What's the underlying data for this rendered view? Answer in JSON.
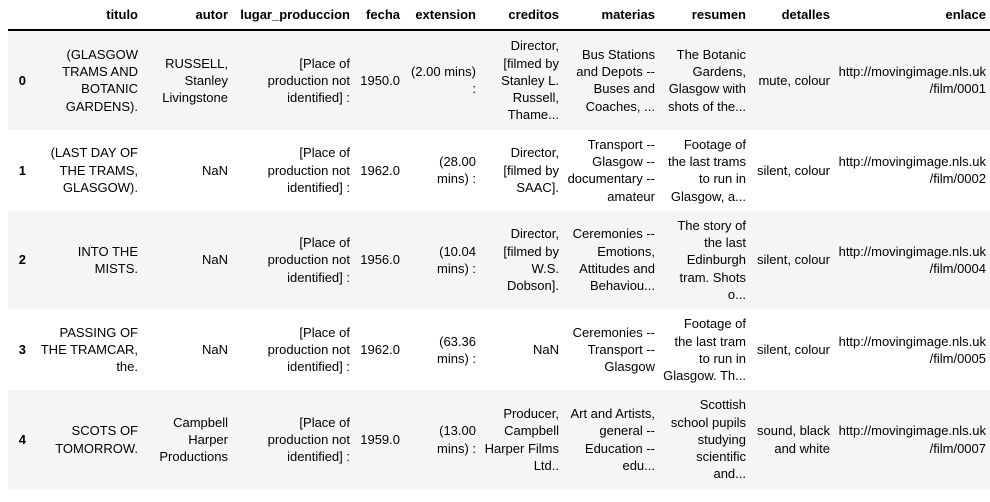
{
  "table": {
    "index_header": "",
    "columns": [
      "titulo",
      "autor",
      "lugar_produccion",
      "fecha",
      "extension",
      "creditos",
      "materias",
      "resumen",
      "detalles",
      "enlace"
    ],
    "rows": [
      {
        "index": "0",
        "cells": [
          "(GLASGOW TRAMS AND BOTANIC GARDENS).",
          "RUSSELL, Stanley Livingstone",
          "[Place of production not identified] :",
          "1950.0",
          "(2.00 mins) :",
          "Director, [filmed by Stanley L. Russell, Thame...",
          "Bus Stations and Depots -- Buses and Coaches, ...",
          "The Botanic Gardens, Glasgow with shots of the...",
          "mute, colour",
          "http://movingimage.nls.uk/film/0001"
        ]
      },
      {
        "index": "1",
        "cells": [
          "(LAST DAY OF THE TRAMS, GLASGOW).",
          "NaN",
          "[Place of production not identified] :",
          "1962.0",
          "(28.00 mins) :",
          "Director, [filmed by SAAC].",
          "Transport -- Glasgow -- documentary -- amateur",
          "Footage of the last trams to run in Glasgow, a...",
          "silent, colour",
          "http://movingimage.nls.uk/film/0002"
        ]
      },
      {
        "index": "2",
        "cells": [
          "INTO THE MISTS.",
          "NaN",
          "[Place of production not identified] :",
          "1956.0",
          "(10.04 mins) :",
          "Director, [filmed by W.S. Dobson].",
          "Ceremonies -- Emotions, Attitudes and Behaviou...",
          "The story of the last Edinburgh tram. Shots o...",
          "silent, colour",
          "http://movingimage.nls.uk/film/0004"
        ]
      },
      {
        "index": "3",
        "cells": [
          "PASSING OF THE TRAMCAR, the.",
          "NaN",
          "[Place of production not identified] :",
          "1962.0",
          "(63.36 mins) :",
          "NaN",
          "Ceremonies -- Transport -- Glasgow",
          "Footage of the last tram to run in Glasgow. Th...",
          "silent, colour",
          "http://movingimage.nls.uk/film/0005"
        ]
      },
      {
        "index": "4",
        "cells": [
          "SCOTS OF TOMORROW.",
          "Campbell Harper Productions",
          "[Place of production not identified] :",
          "1959.0",
          "(13.00 mins) :",
          "Producer, Campbell Harper Films Ltd..",
          "Art and Artists, general -- Education -- edu...",
          "Scottish school pupils studying scientific and...",
          "sound, black and white",
          "http://movingimage.nls.uk/film/0007"
        ]
      }
    ],
    "colors": {
      "stripe": "#f5f5f5",
      "header_border": "#000000",
      "text": "#000000",
      "background": "#ffffff"
    }
  }
}
